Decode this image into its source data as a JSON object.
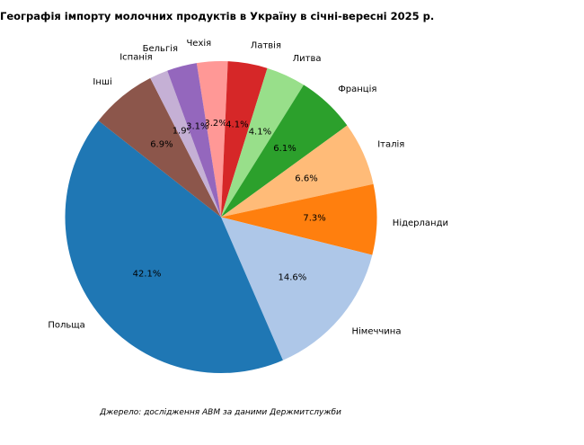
{
  "chart_data": {
    "type": "pie",
    "title": "Географія імпорту молочних продуктів в Україну в січні-вересні 2025 р.",
    "source_note": "Джерело: дослідження АВМ за даними Держмитслужби",
    "unit": "%",
    "direction": "clockwise",
    "start_angle_deg": 99,
    "label_distance": 1.1,
    "pct_distance": 0.6,
    "legend": "none",
    "slices": [
      {
        "label": "Чехія",
        "value": 3.2,
        "color": "#ff9896"
      },
      {
        "label": "Латвія",
        "value": 4.1,
        "color": "#d62728"
      },
      {
        "label": "Литва",
        "value": 4.1,
        "color": "#98df8a"
      },
      {
        "label": "Франція",
        "value": 6.1,
        "color": "#2ca02c"
      },
      {
        "label": "Італія",
        "value": 6.6,
        "color": "#ffbb78"
      },
      {
        "label": "Нідерланди",
        "value": 7.3,
        "color": "#ff7f0e"
      },
      {
        "label": "Німеччина",
        "value": 14.6,
        "color": "#aec7e8"
      },
      {
        "label": "Польща",
        "value": 42.1,
        "color": "#1f77b4"
      },
      {
        "label": "Інші",
        "value": 6.9,
        "color": "#8c564b"
      },
      {
        "label": "Іспанія",
        "value": 1.9,
        "color": "#c5b0d5"
      },
      {
        "label": "Бельгія",
        "value": 3.1,
        "color": "#9467bd"
      }
    ]
  }
}
